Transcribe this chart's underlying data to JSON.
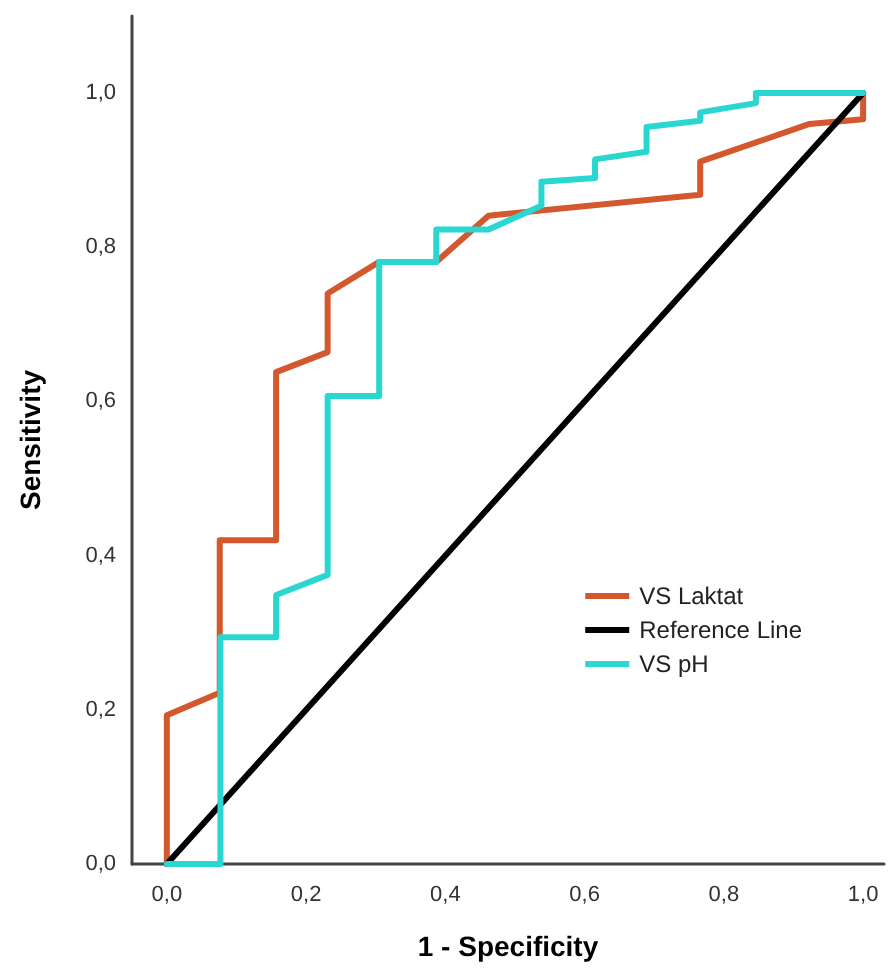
{
  "chart_data": {
    "type": "line",
    "xlabel": "1 - Specificity",
    "ylabel": "Sensitivity",
    "xlim": [
      -0.05,
      1.03
    ],
    "ylim": [
      0,
      1.1
    ],
    "xticks": [
      {
        "value": 0,
        "label": "0,0"
      },
      {
        "value": 0.2,
        "label": "0,2"
      },
      {
        "value": 0.4,
        "label": "0,4"
      },
      {
        "value": 0.6,
        "label": "0,6"
      },
      {
        "value": 0.8,
        "label": "0,8"
      },
      {
        "value": 1,
        "label": "1,0"
      }
    ],
    "yticks": [
      {
        "value": 0,
        "label": "0,0"
      },
      {
        "value": 0.2,
        "label": "0,2"
      },
      {
        "value": 0.4,
        "label": "0,4"
      },
      {
        "value": 0.6,
        "label": "0,6"
      },
      {
        "value": 0.8,
        "label": "0,8"
      },
      {
        "value": 1,
        "label": "1,0"
      }
    ],
    "grid": false,
    "legend": "right",
    "marker": "none",
    "line_style": "solid",
    "series": [
      {
        "name": "VS Laktat",
        "color": "#d4582e",
        "x": [
          0,
          0,
          0.076,
          0.076,
          0.157,
          0.157,
          0.231,
          0.231,
          0.305,
          0.387,
          0.462,
          0.766,
          0.766,
          0.923,
          1,
          1
        ],
        "values": [
          0,
          0.193,
          0.222,
          0.42,
          0.42,
          0.638,
          0.664,
          0.74,
          0.781,
          0.781,
          0.841,
          0.868,
          0.911,
          0.96,
          0.966,
          1
        ]
      },
      {
        "name": "Reference Line",
        "color": "#000000",
        "x": [
          0,
          1
        ],
        "values": [
          0,
          1
        ]
      },
      {
        "name": "VS pH",
        "color": "#2ad6d0",
        "x": [
          0,
          0.077,
          0.077,
          0.157,
          0.157,
          0.231,
          0.231,
          0.305,
          0.305,
          0.387,
          0.387,
          0.462,
          0.538,
          0.538,
          0.615,
          0.615,
          0.689,
          0.689,
          0.766,
          0.766,
          0.846,
          0.846,
          1
        ],
        "values": [
          0,
          0,
          0.294,
          0.294,
          0.349,
          0.375,
          0.607,
          0.607,
          0.781,
          0.781,
          0.823,
          0.823,
          0.854,
          0.885,
          0.89,
          0.914,
          0.924,
          0.956,
          0.964,
          0.975,
          0.987,
          1,
          1
        ]
      }
    ]
  }
}
